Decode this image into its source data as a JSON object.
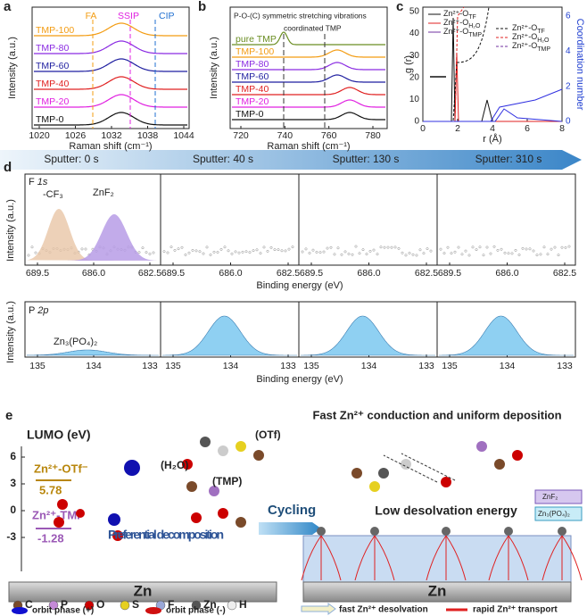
{
  "panel_a": {
    "label": "a",
    "x_label": "Raman shift (cm⁻¹)",
    "y_label": "Intensity (a.u.)",
    "x_ticks": [
      1020,
      1026,
      1032,
      1038,
      1044
    ],
    "markers": [
      "FA",
      "SSIP",
      "CIP"
    ],
    "series": [
      "TMP-100",
      "TMP-80",
      "TMP-60",
      "TMP-40",
      "TMP-20",
      "TMP-0"
    ]
  },
  "panel_b": {
    "label": "b",
    "x_label": "Raman shift (cm⁻¹)",
    "y_label": "Intensity (a.u.)",
    "x_ticks": [
      720,
      740,
      760,
      780
    ],
    "annotations": [
      "P-O-(C) symmetric stretching vibrations",
      "coordinated TMP"
    ],
    "series": [
      "pure TMP",
      "TMP-100",
      "TMP-80",
      "TMP-60",
      "TMP-40",
      "TMP-20",
      "TMP-0"
    ]
  },
  "panel_c": {
    "label": "c",
    "x_label": "r (Å)",
    "y_label": "g (r)",
    "y2_label": "Coordination number",
    "x_ticks": [
      0,
      2,
      4,
      6,
      8
    ],
    "y_ticks": [
      0,
      10,
      20,
      30,
      40,
      50
    ],
    "y2_ticks": [
      0,
      2,
      4,
      6
    ],
    "legend_left": [
      {
        "text": "Zn²⁺-O",
        "sub": "TF"
      },
      {
        "text": "Zn²⁺-O",
        "sub": "H₂O"
      },
      {
        "text": "Zn²⁺-O",
        "sub": "TMP"
      }
    ],
    "legend_right": [
      {
        "text": "Zn²⁺-O",
        "sub": "TF"
      },
      {
        "text": "Zn²⁺-O",
        "sub": "H₂O"
      },
      {
        "text": "Zn²⁺-O",
        "sub": "TMP"
      }
    ]
  },
  "panel_d": {
    "label": "d",
    "sputter": [
      "Sputter: 0 s",
      "Sputter: 40 s",
      "Sputter: 130 s",
      "Sputter: 310 s"
    ],
    "y_label": "Intensity (a.u.)",
    "x_label": "Binding energy (eV)",
    "f1s": {
      "element": "F",
      "orbital": "1s",
      "peaks": [
        "-CF₃",
        "ZnF₂"
      ],
      "x_ticks": [
        "689.5",
        "686.0",
        "682.5"
      ]
    },
    "p2p": {
      "element": "P",
      "orbital": "2p",
      "peak": "Zn₃(PO₄)₂",
      "x_ticks": [
        135,
        134,
        133
      ]
    }
  },
  "panel_e": {
    "label": "e",
    "lumo_title": "LUMO (eV)",
    "lumo_ticks": [
      6,
      3,
      0,
      -3
    ],
    "otf_label": "Zn²⁺-OTf⁻",
    "otf_value": 5.78,
    "tmp_label": "Zn²⁺-TMP",
    "tmp_value": -1.28,
    "h2o": "(H₂O)",
    "otf": "(OTf)",
    "tmp": "(TMP)",
    "decomposition": "Preferential decomposition",
    "cycling": "Cycling",
    "zn": "Zn",
    "right_title": "Fast Zn²⁺ conduction and uniform deposition",
    "low_energy": "Low desolvation energy",
    "znf2": "ZnF₂",
    "znpo": "Zn₃(PO₄)₂",
    "zn_right": "Zn",
    "atoms": [
      "C",
      "P",
      "O",
      "S",
      "F",
      "Zn",
      "H"
    ],
    "phase_plus": "orbit phase (+)",
    "phase_minus": "orbit phase (-)",
    "desolvation": "fast Zn²⁺ desolvation",
    "transport": "rapid Zn²⁺ transport"
  }
}
